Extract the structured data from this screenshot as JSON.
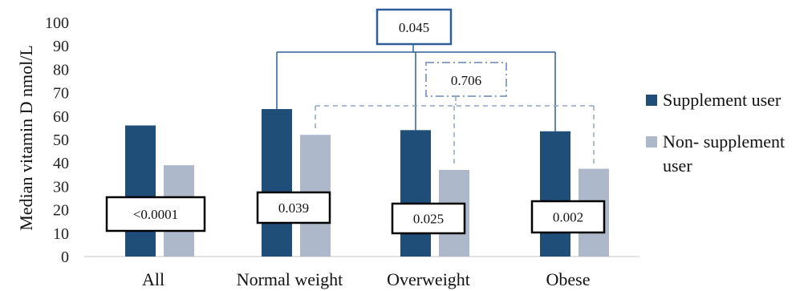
{
  "chart_data": {
    "type": "bar",
    "ylabel": "Median vitamin D nmol/L",
    "ylim": [
      0,
      100
    ],
    "yticks": [
      0,
      10,
      20,
      30,
      40,
      50,
      60,
      70,
      80,
      90,
      100
    ],
    "categories": [
      "All",
      "Normal weight",
      "Overweight",
      "Obese"
    ],
    "series": [
      {
        "name": "Supplement user",
        "color": "#1f4e79",
        "values": [
          56,
          63,
          54,
          53.5
        ]
      },
      {
        "name": "Non- supplement user",
        "color": "#adb9ca",
        "values": [
          39,
          52,
          37,
          37.5
        ]
      }
    ],
    "legend": {
      "position": "right",
      "entries": [
        {
          "lines": [
            "Supplement user"
          ]
        },
        {
          "lines": [
            "Non- supplement",
            "user"
          ]
        }
      ]
    },
    "within_group_pvalues": [
      "<0.0001",
      "0.039",
      "0.025",
      "0.002"
    ],
    "comparison_brackets": [
      {
        "label": "0.045",
        "series": "Supplement user",
        "style": "solid",
        "categories": [
          "Normal weight",
          "Overweight",
          "Obese"
        ]
      },
      {
        "label": "0.706",
        "series": "Non- supplement user",
        "style": "dashed",
        "categories": [
          "Normal weight",
          "Overweight",
          "Obese"
        ]
      }
    ],
    "grid": false
  }
}
